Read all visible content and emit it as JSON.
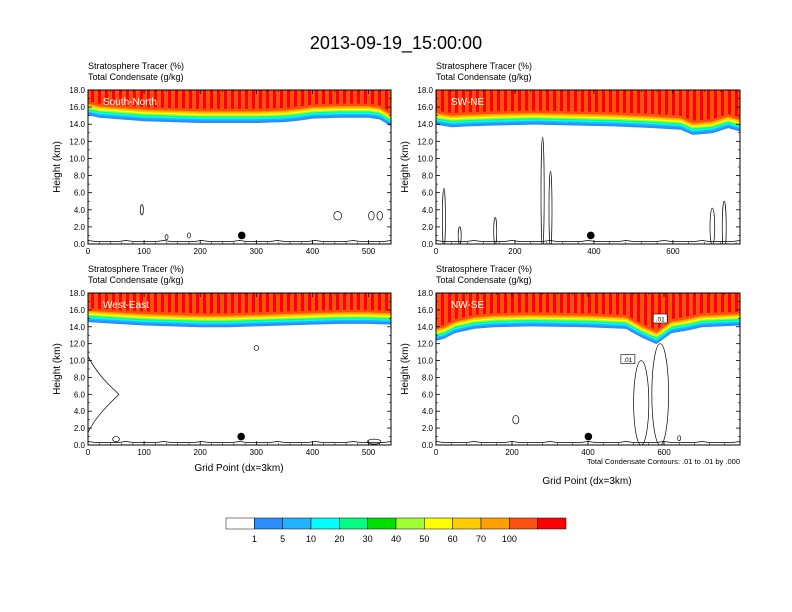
{
  "chart_data": {
    "type": "heatmap",
    "title": "2013-09-19_15:00:00",
    "field_label": "Stratosphere Tracer",
    "field_unit": "(%)",
    "contour_label": "Total Condensate",
    "contour_unit": "(g/kg)",
    "ylabel": "Height (km)",
    "xlabel": "Grid Point (dx=3km)",
    "ylim": [
      0,
      18
    ],
    "yticks": [
      "0.0",
      "2.0",
      "4.0",
      "6.0",
      "8.0",
      "10.0",
      "12.0",
      "14.0",
      "16.0",
      "18.0"
    ],
    "footnote": "Total Condensate Contours: .01 to .01 by .000",
    "colorbar": {
      "levels": [
        "1",
        "5",
        "10",
        "20",
        "30",
        "40",
        "50",
        "60",
        "70",
        "100"
      ],
      "colors": [
        "#ffffff",
        "#2a8cff",
        "#1fb4ff",
        "#00ffff",
        "#00ff80",
        "#00e000",
        "#a0ff30",
        "#ffff00",
        "#ffcc00",
        "#ffa000",
        "#ff5010",
        "#ff0000"
      ]
    },
    "panels": [
      {
        "name": "South-North",
        "xlim": [
          0,
          540
        ],
        "xticks": [
          0,
          100,
          200,
          300,
          400,
          500
        ],
        "marker_x": 274,
        "tracer_base_km": [
          [
            0,
            15.3
          ],
          [
            20,
            15.0
          ],
          [
            60,
            14.8
          ],
          [
            100,
            14.6
          ],
          [
            150,
            14.5
          ],
          [
            200,
            14.4
          ],
          [
            250,
            14.4
          ],
          [
            300,
            14.4
          ],
          [
            350,
            14.5
          ],
          [
            380,
            14.7
          ],
          [
            400,
            14.9
          ],
          [
            450,
            15.0
          ],
          [
            500,
            15.0
          ],
          [
            520,
            14.8
          ],
          [
            540,
            14.0
          ]
        ],
        "contour_labels": []
      },
      {
        "name": "SW-NE",
        "xlim": [
          0,
          770
        ],
        "xticks": [
          0,
          200,
          400,
          600
        ],
        "marker_x": 392,
        "tracer_base_km": [
          [
            0,
            14.2
          ],
          [
            40,
            13.9
          ],
          [
            80,
            14.0
          ],
          [
            150,
            14.1
          ],
          [
            250,
            14.2
          ],
          [
            350,
            14.1
          ],
          [
            450,
            14.0
          ],
          [
            550,
            13.8
          ],
          [
            620,
            13.6
          ],
          [
            650,
            13.0
          ],
          [
            700,
            13.2
          ],
          [
            740,
            13.8
          ],
          [
            770,
            13.4
          ]
        ],
        "contour_labels": []
      },
      {
        "name": "West-East",
        "xlim": [
          0,
          540
        ],
        "xticks": [
          0,
          100,
          200,
          300,
          400,
          500
        ],
        "marker_x": 273,
        "tracer_base_km": [
          [
            0,
            14.8
          ],
          [
            50,
            14.6
          ],
          [
            100,
            14.4
          ],
          [
            150,
            14.3
          ],
          [
            200,
            14.2
          ],
          [
            250,
            14.2
          ],
          [
            300,
            14.3
          ],
          [
            350,
            14.4
          ],
          [
            400,
            14.5
          ],
          [
            450,
            14.6
          ],
          [
            500,
            14.6
          ],
          [
            540,
            14.5
          ]
        ],
        "contour_labels": []
      },
      {
        "name": "NW-SE",
        "xlim": [
          0,
          800
        ],
        "xticks": [
          0,
          200,
          400,
          600
        ],
        "marker_x": 401,
        "tracer_base_km": [
          [
            0,
            12.6
          ],
          [
            20,
            12.8
          ],
          [
            50,
            13.5
          ],
          [
            100,
            14.0
          ],
          [
            150,
            14.2
          ],
          [
            250,
            14.3
          ],
          [
            400,
            14.2
          ],
          [
            500,
            14.0
          ],
          [
            540,
            13.0
          ],
          [
            580,
            12.2
          ],
          [
            620,
            13.5
          ],
          [
            660,
            13.8
          ],
          [
            700,
            14.2
          ],
          [
            800,
            14.4
          ]
        ],
        "contour_labels": [
          ".01",
          ".01"
        ]
      }
    ]
  }
}
